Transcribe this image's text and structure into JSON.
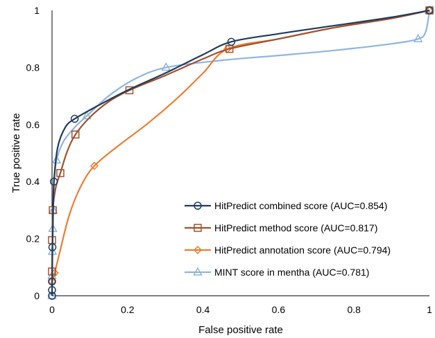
{
  "chart_data": {
    "type": "line",
    "title": "",
    "xlabel": "False positive rate",
    "ylabel": "True positive rate",
    "xlim": [
      0,
      1
    ],
    "ylim": [
      0,
      1
    ],
    "x_ticks": [
      "0",
      "0.2",
      "0.4",
      "0.6",
      "0.8",
      "1"
    ],
    "y_ticks": [
      "0",
      "0.2",
      "0.4",
      "0.6",
      "0.8",
      "1"
    ],
    "grid": false,
    "legend_position": "bottom-right",
    "series": [
      {
        "name": "HitPredict combined score (AUC=0.854)",
        "color": "#1f3b5c",
        "marker": "circle",
        "points": [
          [
            0,
            0
          ],
          [
            0,
            0.02
          ],
          [
            0,
            0.05
          ],
          [
            0.001,
            0.17
          ],
          [
            0.005,
            0.4
          ],
          [
            0.06,
            0.62
          ],
          [
            0.475,
            0.89
          ],
          [
            1,
            1
          ]
        ],
        "curve": [
          [
            0,
            0
          ],
          [
            0.001,
            0.15
          ],
          [
            0.003,
            0.3
          ],
          [
            0.005,
            0.4
          ],
          [
            0.015,
            0.52
          ],
          [
            0.035,
            0.59
          ],
          [
            0.06,
            0.62
          ],
          [
            0.12,
            0.665
          ],
          [
            0.2,
            0.72
          ],
          [
            0.3,
            0.78
          ],
          [
            0.4,
            0.845
          ],
          [
            0.475,
            0.89
          ],
          [
            0.6,
            0.918
          ],
          [
            0.75,
            0.947
          ],
          [
            0.9,
            0.976
          ],
          [
            1,
            1
          ]
        ]
      },
      {
        "name": "HitPredict method score (AUC=0.817)",
        "color": "#a0522d",
        "marker": "square",
        "points": [
          [
            0,
            0.085
          ],
          [
            0,
            0.195
          ],
          [
            0.002,
            0.3
          ],
          [
            0.022,
            0.43
          ],
          [
            0.062,
            0.565
          ],
          [
            0.205,
            0.72
          ],
          [
            0.47,
            0.865
          ],
          [
            1,
            1
          ]
        ],
        "curve": [
          [
            0,
            0.085
          ],
          [
            0.001,
            0.2
          ],
          [
            0.002,
            0.3
          ],
          [
            0.01,
            0.38
          ],
          [
            0.022,
            0.43
          ],
          [
            0.04,
            0.505
          ],
          [
            0.062,
            0.565
          ],
          [
            0.1,
            0.625
          ],
          [
            0.15,
            0.68
          ],
          [
            0.205,
            0.72
          ],
          [
            0.3,
            0.772
          ],
          [
            0.4,
            0.83
          ],
          [
            0.47,
            0.865
          ],
          [
            0.6,
            0.9
          ],
          [
            0.75,
            0.94
          ],
          [
            0.9,
            0.972
          ],
          [
            1,
            1
          ]
        ]
      },
      {
        "name": "HitPredict annotation score (AUC=0.794)",
        "color": "#ed7d31",
        "marker": "diamond",
        "points": [
          [
            0,
            0.05
          ],
          [
            0.007,
            0.08
          ],
          [
            0.112,
            0.455
          ],
          [
            0.465,
            0.865
          ],
          [
            1,
            1
          ]
        ],
        "curve": [
          [
            0,
            0.05
          ],
          [
            0.007,
            0.08
          ],
          [
            0.02,
            0.15
          ],
          [
            0.045,
            0.28
          ],
          [
            0.075,
            0.38
          ],
          [
            0.112,
            0.455
          ],
          [
            0.18,
            0.53
          ],
          [
            0.25,
            0.6
          ],
          [
            0.33,
            0.69
          ],
          [
            0.4,
            0.78
          ],
          [
            0.465,
            0.865
          ],
          [
            0.6,
            0.9
          ],
          [
            0.75,
            0.94
          ],
          [
            0.9,
            0.972
          ],
          [
            1,
            1
          ]
        ]
      },
      {
        "name": "MINT score in mentha (AUC=0.781)",
        "color": "#8fb4e0",
        "marker": "triangle",
        "points": [
          [
            0,
            0
          ],
          [
            0,
            0.07
          ],
          [
            0.001,
            0.155
          ],
          [
            0.002,
            0.235
          ],
          [
            0.003,
            0.3
          ],
          [
            0.012,
            0.475
          ],
          [
            0.092,
            0.63
          ],
          [
            0.302,
            0.8
          ],
          [
            0.97,
            0.9
          ],
          [
            1,
            1
          ]
        ],
        "curve": [
          [
            0,
            0
          ],
          [
            0,
            0.07
          ],
          [
            0.001,
            0.155
          ],
          [
            0.002,
            0.235
          ],
          [
            0.003,
            0.3
          ],
          [
            0.006,
            0.4
          ],
          [
            0.012,
            0.475
          ],
          [
            0.03,
            0.54
          ],
          [
            0.06,
            0.59
          ],
          [
            0.092,
            0.63
          ],
          [
            0.15,
            0.7
          ],
          [
            0.22,
            0.76
          ],
          [
            0.302,
            0.8
          ],
          [
            0.45,
            0.825
          ],
          [
            0.6,
            0.842
          ],
          [
            0.75,
            0.86
          ],
          [
            0.9,
            0.883
          ],
          [
            0.97,
            0.9
          ],
          [
            0.99,
            0.925
          ],
          [
            1,
            1
          ]
        ]
      }
    ]
  }
}
